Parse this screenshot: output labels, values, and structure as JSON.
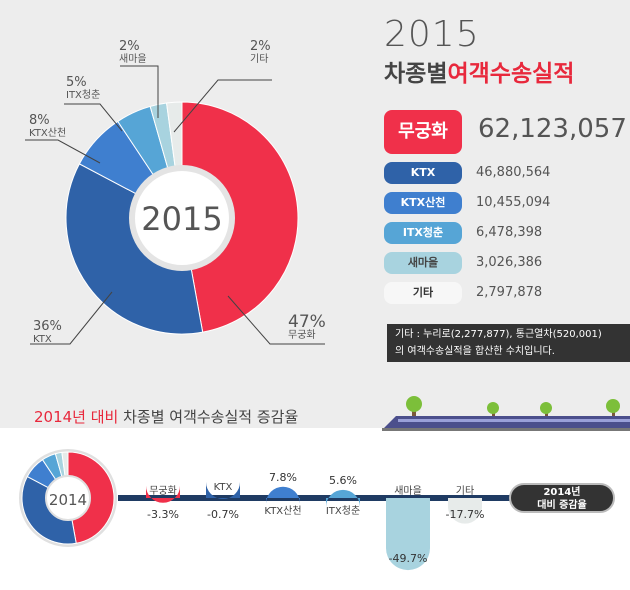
{
  "header": {
    "year": "2015",
    "title_part1": "차종별",
    "title_part2": "여객수송실적"
  },
  "donut": {
    "center_label": "2015"
  },
  "colors": {
    "무궁화": "#f0304a",
    "KTX": "#2f62a8",
    "KTX산천": "#3f7fcf",
    "ITX청춘": "#56a5d6",
    "새마을": "#a8d3df",
    "기타": "#e7ebea"
  },
  "pie_labels": [
    {
      "pct": "47%",
      "name": "무궁화"
    },
    {
      "pct": "36%",
      "name": "KTX"
    },
    {
      "pct": "8%",
      "name": "KTX산천"
    },
    {
      "pct": "5%",
      "name": "ITX청춘"
    },
    {
      "pct": "2%",
      "name": "새마을"
    },
    {
      "pct": "2%",
      "name": "기타"
    }
  ],
  "table": [
    {
      "label": "무궁화",
      "value": "62,123,057"
    },
    {
      "label": "KTX",
      "value": "46,880,564"
    },
    {
      "label": "KTX산천",
      "value": "10,455,094"
    },
    {
      "label": "ITX청춘",
      "value": "6,478,398"
    },
    {
      "label": "새마을",
      "value": "3,026,386"
    },
    {
      "label": "기타",
      "value": "2,797,878"
    }
  ],
  "note": {
    "line1": "기타 : 누리로(2,277,877), 통근열차(520,001)",
    "line2": "의 여객수송실적을 합산한 수치입니다."
  },
  "section2": {
    "title_red": "2014년 대비",
    "title_rest": " 차종별 여객수송실적 증감율",
    "small_donut_label": "2014",
    "pill_line1": "2014년",
    "pill_line2": "대비 증감율"
  },
  "chart_data": [
    {
      "type": "pie",
      "title": "2015",
      "categories": [
        "무궁화",
        "KTX",
        "KTX산천",
        "ITX청춘",
        "새마을",
        "기타"
      ],
      "values": [
        62123057,
        46880564,
        10455094,
        6478398,
        3026386,
        2797878
      ],
      "percent_labels": [
        "47%",
        "36%",
        "8%",
        "5%",
        "2%",
        "2%"
      ]
    },
    {
      "type": "bar",
      "title": "2014년 대비 차종별 여객수송실적 증감율",
      "categories": [
        "무궁화",
        "KTX",
        "KTX산천",
        "ITX청춘",
        "새마을",
        "기타"
      ],
      "values": [
        -3.3,
        -0.7,
        7.8,
        5.6,
        -49.7,
        -17.7
      ],
      "value_labels": [
        "-3.3%",
        "-0.7%",
        "7.8%",
        "5.6%",
        "-49.7%",
        "-17.7%"
      ]
    }
  ]
}
